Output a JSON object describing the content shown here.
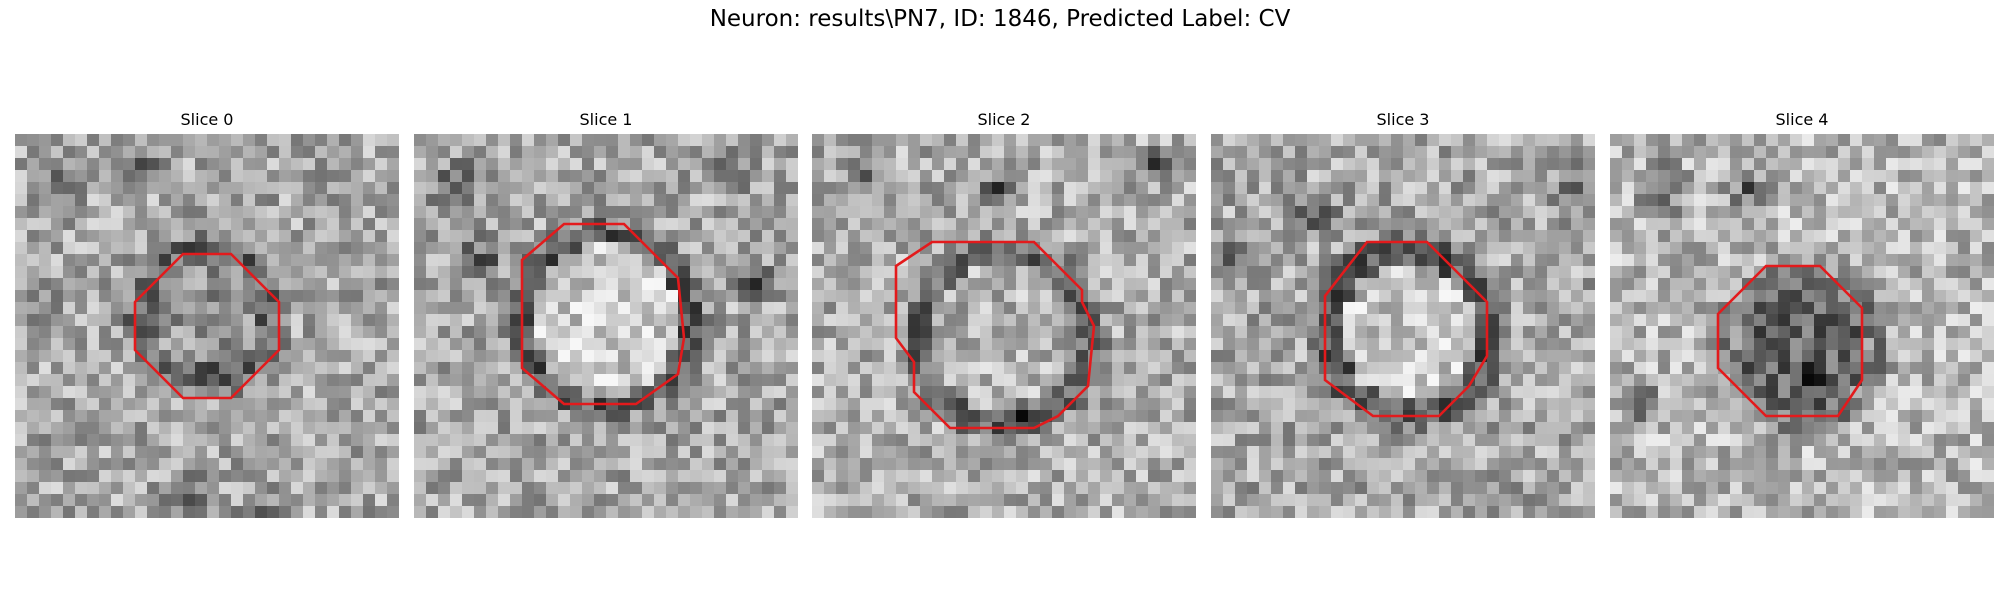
{
  "figure": {
    "title": "Neuron: results\\PN7, ID: 1846, Predicted Label: CV"
  },
  "overlay_color": "#e31a1c",
  "panels": [
    {
      "title": "Slice 0",
      "contour_grid": [
        [
          14,
          10
        ],
        [
          18,
          10
        ],
        [
          22,
          14
        ],
        [
          22,
          18
        ],
        [
          18,
          22
        ],
        [
          14,
          22
        ],
        [
          10,
          18
        ],
        [
          10,
          14
        ]
      ]
    },
    {
      "title": "Slice 1",
      "contour_grid": [
        [
          12.5,
          7.5
        ],
        [
          17.5,
          7.5
        ],
        [
          21,
          11
        ],
        [
          22,
          12
        ],
        [
          22.5,
          17
        ],
        [
          22,
          20
        ],
        [
          18.5,
          22.5
        ],
        [
          12.5,
          22.5
        ],
        [
          9,
          19.5
        ],
        [
          9,
          10.5
        ]
      ]
    },
    {
      "title": "Slice 2",
      "contour_grid": [
        [
          10,
          9
        ],
        [
          18.5,
          9
        ],
        [
          22.5,
          13
        ],
        [
          22.5,
          14
        ],
        [
          23,
          15
        ],
        [
          23.5,
          16
        ],
        [
          23,
          21
        ],
        [
          20.5,
          23.5
        ],
        [
          18.5,
          24.5
        ],
        [
          11.5,
          24.5
        ],
        [
          8.5,
          21.5
        ],
        [
          8.5,
          19
        ],
        [
          7,
          17
        ],
        [
          7,
          11
        ]
      ]
    },
    {
      "title": "Slice 3",
      "contour_grid": [
        [
          13,
          9
        ],
        [
          18,
          9
        ],
        [
          23,
          14
        ],
        [
          23,
          18.5
        ],
        [
          21.5,
          21
        ],
        [
          19,
          23.5
        ],
        [
          13.5,
          23.5
        ],
        [
          9.5,
          20.5
        ],
        [
          9.5,
          13.5
        ]
      ]
    },
    {
      "title": "Slice 4",
      "contour_grid": [
        [
          13,
          11
        ],
        [
          17.5,
          11
        ],
        [
          21,
          14.5
        ],
        [
          21,
          20.5
        ],
        [
          19,
          23.5
        ],
        [
          13,
          23.5
        ],
        [
          9,
          19.5
        ],
        [
          9,
          15
        ]
      ]
    }
  ]
}
